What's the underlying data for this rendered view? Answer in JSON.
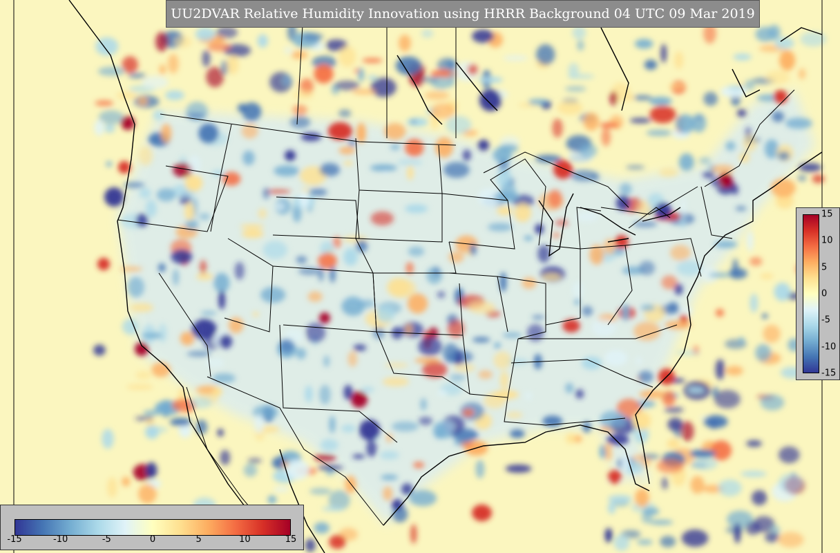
{
  "title": "UU2DVAR Relative Humidity Innovation using HRRR Background 04 UTC 09 Mar 2019",
  "colorbar": {
    "min": -15,
    "max": 15,
    "horizontal_ticks": [
      "-15",
      "-10",
      "-5",
      "0",
      "5",
      "10",
      "15"
    ],
    "vertical_ticks": [
      "15",
      "10",
      "5",
      "0",
      "-5",
      "-10",
      "-15"
    ],
    "colors": [
      "#313695",
      "#4575b4",
      "#74add1",
      "#abd9e9",
      "#e0f3f8",
      "#ffffbf",
      "#fee090",
      "#fdae61",
      "#f46d43",
      "#d73027",
      "#a50026"
    ]
  },
  "map": {
    "background_color": "#fbf6bf",
    "boundary_color": "#000000"
  }
}
